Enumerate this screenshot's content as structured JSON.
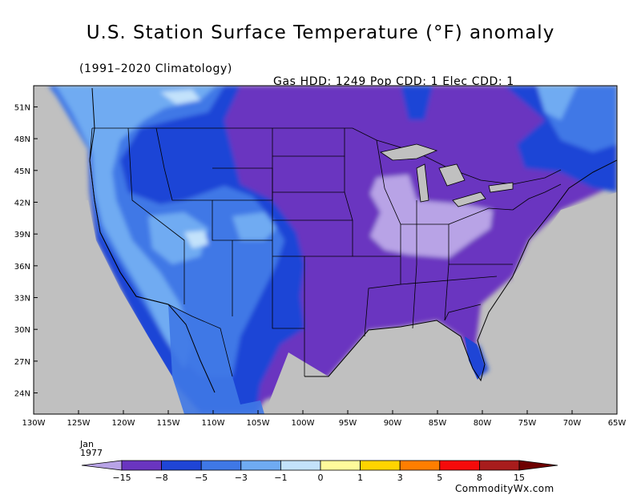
{
  "title": "U.S. Station Surface Temperature (°F) anomaly",
  "subtitle_left": "(1991–2020 Climatology)",
  "subtitle_right": "Gas HDD: 1249 Pop CDD: 1 Elec CDD: 1",
  "period": {
    "month": "Jan",
    "year": "1977"
  },
  "brand": "CommodityWx.com",
  "map": {
    "lon_range": [
      -130,
      -65
    ],
    "lat_range": [
      22,
      53
    ],
    "lon_ticks": [
      "130W",
      "125W",
      "120W",
      "115W",
      "110W",
      "105W",
      "100W",
      "95W",
      "90W",
      "85W",
      "80W",
      "75W",
      "70W",
      "65W"
    ],
    "lat_ticks": [
      "51N",
      "48N",
      "45N",
      "42N",
      "39N",
      "36N",
      "33N",
      "30N",
      "27N",
      "24N"
    ],
    "background_color": "#c0c0c0"
  },
  "legend": {
    "tick_labels": [
      "-15",
      "-8",
      "-5",
      "-3",
      "-1",
      "0",
      "1",
      "3",
      "5",
      "8",
      "15"
    ],
    "colors": [
      "#b8a3e6",
      "#6a35c0",
      "#1f45d6",
      "#3f78e6",
      "#6fabf2",
      "#c3e2fb",
      "#fffa9b",
      "#ffd400",
      "#ff7e00",
      "#f50b0b",
      "#a81c1c",
      "#6e0000"
    ]
  }
}
